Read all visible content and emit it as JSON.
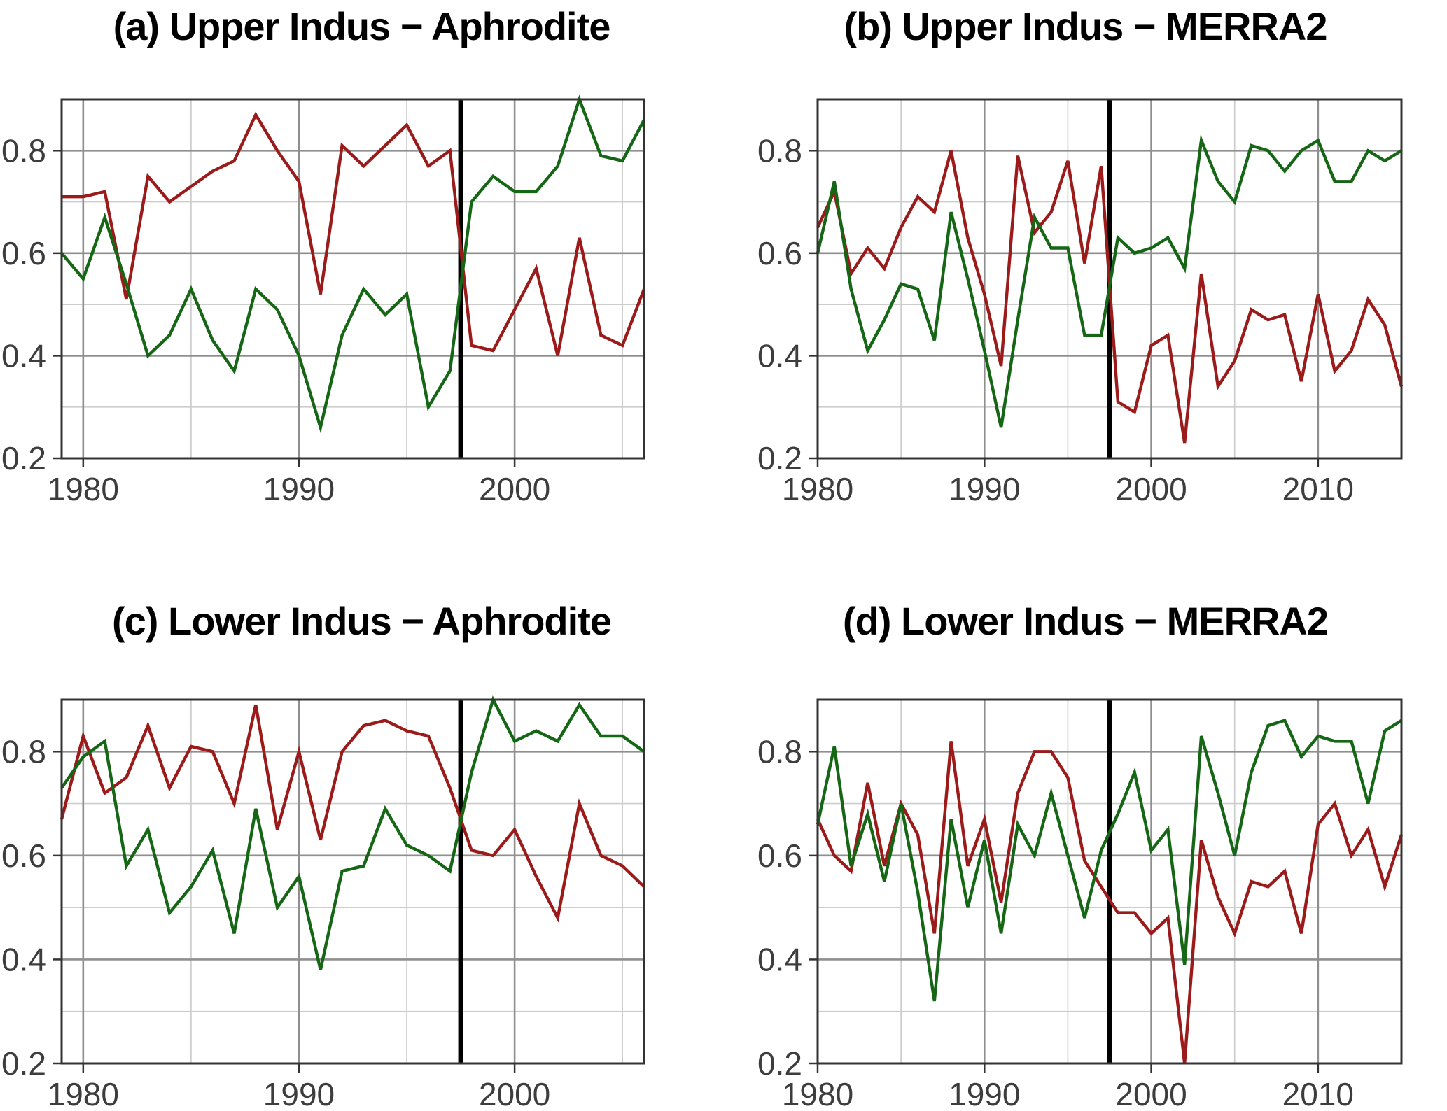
{
  "figure": {
    "kind": "4-panel correlation time-series figure",
    "background": "#ffffff"
  },
  "style": {
    "red_line": "#9B1B1B",
    "green_line": "#156615",
    "changepoint_line": "#000000",
    "grid_major": "#8f8f8f",
    "grid_minor": "#cdcdcd",
    "panel_border": "#333333",
    "tick_label_color": "#3d3d3d",
    "title_color": "#000000"
  },
  "chart_data": [
    {
      "id": "a",
      "panel_label": "(a)",
      "title": "Upper Indus − Aphrodite",
      "full_title": "(a) Upper Indus − Aphrodite",
      "type": "line",
      "xlim": [
        1979,
        2006
      ],
      "ylim": [
        0.2,
        0.9
      ],
      "xticks_labeled": [
        1980,
        1990,
        2000
      ],
      "xticks_minor": [
        1985,
        1995,
        2005
      ],
      "yticks_labeled": [
        0.2,
        0.4,
        0.6,
        0.8
      ],
      "yticks_minor": [
        0.3,
        0.5,
        0.7
      ],
      "changepoint_x": 1997.5,
      "grid": true,
      "legend": "none",
      "x": [
        1979,
        1980,
        1981,
        1982,
        1983,
        1984,
        1985,
        1986,
        1987,
        1988,
        1989,
        1990,
        1991,
        1992,
        1993,
        1994,
        1995,
        1996,
        1997,
        1998,
        1999,
        2000,
        2001,
        2002,
        2003,
        2004,
        2005,
        2006
      ],
      "series": [
        {
          "name": "red",
          "color": "#9B1B1B",
          "values": [
            0.71,
            0.71,
            0.72,
            0.51,
            0.75,
            0.7,
            0.73,
            0.76,
            0.78,
            0.87,
            0.8,
            0.74,
            0.52,
            0.81,
            0.77,
            0.81,
            0.85,
            0.77,
            0.8,
            0.42,
            0.41,
            0.49,
            0.57,
            0.4,
            0.63,
            0.44,
            0.42,
            0.53
          ]
        },
        {
          "name": "green",
          "color": "#156615",
          "values": [
            0.6,
            0.55,
            0.67,
            0.54,
            0.4,
            0.44,
            0.53,
            0.43,
            0.37,
            0.53,
            0.49,
            0.4,
            0.26,
            0.44,
            0.53,
            0.48,
            0.52,
            0.3,
            0.37,
            0.7,
            0.75,
            0.72,
            0.72,
            0.77,
            0.9,
            0.79,
            0.78,
            0.86
          ]
        }
      ]
    },
    {
      "id": "b",
      "panel_label": "(b)",
      "title": "Upper Indus − MERRA2",
      "full_title": "(b) Upper Indus − MERRA2",
      "type": "line",
      "xlim": [
        1980,
        2015
      ],
      "ylim": [
        0.2,
        0.9
      ],
      "xticks_labeled": [
        1980,
        1990,
        2000,
        2010
      ],
      "xticks_minor": [
        1985,
        1995,
        2005
      ],
      "yticks_labeled": [
        0.2,
        0.4,
        0.6,
        0.8
      ],
      "yticks_minor": [
        0.3,
        0.5,
        0.7
      ],
      "changepoint_x": 1997.5,
      "grid": true,
      "legend": "none",
      "x": [
        1980,
        1981,
        1982,
        1983,
        1984,
        1985,
        1986,
        1987,
        1988,
        1989,
        1990,
        1991,
        1992,
        1993,
        1994,
        1995,
        1996,
        1997,
        1998,
        1999,
        2000,
        2001,
        2002,
        2003,
        2004,
        2005,
        2006,
        2007,
        2008,
        2009,
        2010,
        2011,
        2012,
        2013,
        2014,
        2015
      ],
      "series": [
        {
          "name": "red",
          "color": "#9B1B1B",
          "values": [
            0.65,
            0.72,
            0.56,
            0.61,
            0.57,
            0.65,
            0.71,
            0.68,
            0.8,
            0.63,
            0.52,
            0.38,
            0.79,
            0.64,
            0.68,
            0.78,
            0.58,
            0.77,
            0.31,
            0.29,
            0.42,
            0.44,
            0.23,
            0.56,
            0.34,
            0.39,
            0.49,
            0.47,
            0.48,
            0.35,
            0.52,
            0.37,
            0.41,
            0.51,
            0.46,
            0.34
          ]
        },
        {
          "name": "green",
          "color": "#156615",
          "values": [
            0.6,
            0.74,
            0.53,
            0.41,
            0.47,
            0.54,
            0.53,
            0.43,
            0.68,
            0.55,
            0.41,
            0.26,
            0.47,
            0.67,
            0.61,
            0.61,
            0.44,
            0.44,
            0.63,
            0.6,
            0.61,
            0.63,
            0.57,
            0.82,
            0.74,
            0.7,
            0.81,
            0.8,
            0.76,
            0.8,
            0.82,
            0.74,
            0.74,
            0.8,
            0.78,
            0.8
          ]
        }
      ]
    },
    {
      "id": "c",
      "panel_label": "(c)",
      "title": "Lower Indus − Aphrodite",
      "full_title": "(c) Lower Indus − Aphrodite",
      "type": "line",
      "xlim": [
        1979,
        2006
      ],
      "ylim": [
        0.2,
        0.9
      ],
      "xticks_labeled": [
        1980,
        1990,
        2000
      ],
      "xticks_minor": [
        1985,
        1995,
        2005
      ],
      "yticks_labeled": [
        0.2,
        0.4,
        0.6,
        0.8
      ],
      "yticks_minor": [
        0.3,
        0.5,
        0.7
      ],
      "changepoint_x": 1997.5,
      "grid": true,
      "legend": "none",
      "x": [
        1979,
        1980,
        1981,
        1982,
        1983,
        1984,
        1985,
        1986,
        1987,
        1988,
        1989,
        1990,
        1991,
        1992,
        1993,
        1994,
        1995,
        1996,
        1997,
        1998,
        1999,
        2000,
        2001,
        2002,
        2003,
        2004,
        2005,
        2006
      ],
      "series": [
        {
          "name": "red",
          "color": "#9B1B1B",
          "values": [
            0.67,
            0.83,
            0.72,
            0.75,
            0.85,
            0.73,
            0.81,
            0.8,
            0.7,
            0.89,
            0.65,
            0.8,
            0.63,
            0.8,
            0.85,
            0.86,
            0.84,
            0.83,
            0.73,
            0.61,
            0.6,
            0.65,
            0.56,
            0.48,
            0.7,
            0.6,
            0.58,
            0.54
          ]
        },
        {
          "name": "green",
          "color": "#156615",
          "values": [
            0.73,
            0.79,
            0.82,
            0.58,
            0.65,
            0.49,
            0.54,
            0.61,
            0.45,
            0.69,
            0.5,
            0.56,
            0.38,
            0.57,
            0.58,
            0.69,
            0.62,
            0.6,
            0.57,
            0.76,
            0.9,
            0.82,
            0.84,
            0.82,
            0.89,
            0.83,
            0.83,
            0.8
          ]
        }
      ]
    },
    {
      "id": "d",
      "panel_label": "(d)",
      "title": "Lower Indus − MERRA2",
      "full_title": "(d) Lower Indus − MERRA2",
      "type": "line",
      "xlim": [
        1980,
        2015
      ],
      "ylim": [
        0.2,
        0.9
      ],
      "xticks_labeled": [
        1980,
        1990,
        2000,
        2010
      ],
      "xticks_minor": [
        1985,
        1995,
        2005
      ],
      "yticks_labeled": [
        0.2,
        0.4,
        0.6,
        0.8
      ],
      "yticks_minor": [
        0.3,
        0.5,
        0.7
      ],
      "changepoint_x": 1997.5,
      "grid": true,
      "legend": "none",
      "x": [
        1980,
        1981,
        1982,
        1983,
        1984,
        1985,
        1986,
        1987,
        1988,
        1989,
        1990,
        1991,
        1992,
        1993,
        1994,
        1995,
        1996,
        1997,
        1998,
        1999,
        2000,
        2001,
        2002,
        2003,
        2004,
        2005,
        2006,
        2007,
        2008,
        2009,
        2010,
        2011,
        2012,
        2013,
        2014,
        2015
      ],
      "series": [
        {
          "name": "red",
          "color": "#9B1B1B",
          "values": [
            0.67,
            0.6,
            0.57,
            0.74,
            0.58,
            0.7,
            0.64,
            0.45,
            0.82,
            0.58,
            0.67,
            0.51,
            0.72,
            0.8,
            0.8,
            0.75,
            0.59,
            0.54,
            0.49,
            0.49,
            0.45,
            0.48,
            0.2,
            0.63,
            0.52,
            0.45,
            0.55,
            0.54,
            0.57,
            0.45,
            0.66,
            0.7,
            0.6,
            0.65,
            0.54,
            0.64
          ]
        },
        {
          "name": "green",
          "color": "#156615",
          "values": [
            0.66,
            0.81,
            0.58,
            0.68,
            0.55,
            0.7,
            0.53,
            0.32,
            0.67,
            0.5,
            0.63,
            0.45,
            0.66,
            0.6,
            0.72,
            0.6,
            0.48,
            0.61,
            0.68,
            0.76,
            0.61,
            0.65,
            0.39,
            0.83,
            0.72,
            0.6,
            0.76,
            0.85,
            0.86,
            0.79,
            0.83,
            0.82,
            0.82,
            0.7,
            0.84,
            0.86
          ]
        }
      ]
    }
  ]
}
